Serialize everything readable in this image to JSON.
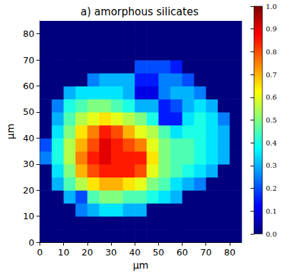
{
  "chart_data": {
    "type": "heatmap",
    "title": "a) amorphous silicates",
    "x_label": "µm",
    "y_label": "µm",
    "xlim": [
      0,
      85
    ],
    "ylim": [
      0,
      85
    ],
    "xticks": [
      0,
      10,
      20,
      30,
      40,
      50,
      60,
      70,
      80
    ],
    "yticks": [
      0,
      10,
      20,
      30,
      40,
      50,
      60,
      70,
      80
    ],
    "x": [
      2.5,
      7.5,
      12.5,
      17.5,
      22.5,
      27.5,
      32.5,
      37.5,
      42.5,
      47.5,
      52.5,
      57.5,
      62.5,
      67.5,
      72.5,
      77.5,
      82.5
    ],
    "y": [
      2.5,
      7.5,
      12.5,
      17.5,
      22.5,
      27.5,
      32.5,
      37.5,
      42.5,
      47.5,
      52.5,
      57.5,
      62.5,
      67.5,
      72.5,
      77.5,
      82.5
    ],
    "values": [
      [
        0,
        0,
        0,
        0,
        0,
        0,
        0,
        0,
        0,
        0,
        0,
        0,
        0,
        0,
        0,
        0,
        0
      ],
      [
        0,
        0,
        0,
        0,
        0,
        0,
        0,
        0,
        0,
        0,
        0,
        0,
        0,
        0,
        0,
        0,
        0
      ],
      [
        0,
        0,
        0,
        0.25,
        0.3,
        0.35,
        0.35,
        0.3,
        0.3,
        0,
        0,
        0,
        0,
        0,
        0,
        0,
        0
      ],
      [
        0,
        0,
        0.3,
        0.2,
        0.45,
        0.5,
        0.5,
        0.45,
        0.45,
        0.4,
        0.35,
        0.3,
        0,
        0,
        0,
        0,
        0
      ],
      [
        0,
        0.3,
        0.45,
        0.55,
        0.65,
        0.7,
        0.7,
        0.65,
        0.6,
        0.5,
        0.45,
        0.35,
        0.3,
        0.25,
        0,
        0,
        0
      ],
      [
        0,
        0.35,
        0.5,
        0.7,
        0.8,
        0.85,
        0.85,
        0.85,
        0.8,
        0.6,
        0.5,
        0.45,
        0.4,
        0.35,
        0.3,
        0,
        0
      ],
      [
        0.25,
        0.4,
        0.55,
        0.75,
        0.85,
        0.9,
        0.85,
        0.85,
        0.85,
        0.65,
        0.5,
        0.45,
        0.45,
        0.4,
        0.35,
        0.3,
        0
      ],
      [
        0.2,
        0.4,
        0.55,
        0.7,
        0.8,
        0.9,
        0.85,
        0.8,
        0.75,
        0.6,
        0.5,
        0.45,
        0.45,
        0.4,
        0.35,
        0.3,
        0
      ],
      [
        0,
        0.35,
        0.5,
        0.65,
        0.75,
        0.85,
        0.8,
        0.7,
        0.6,
        0.55,
        0.45,
        0.35,
        0.4,
        0.4,
        0.35,
        0.3,
        0
      ],
      [
        0,
        0.3,
        0.45,
        0.55,
        0.6,
        0.65,
        0.6,
        0.55,
        0.5,
        0.4,
        0.15,
        0.15,
        0.35,
        0.4,
        0.35,
        0.25,
        0
      ],
      [
        0,
        0.25,
        0.4,
        0.45,
        0.5,
        0.5,
        0.45,
        0.4,
        0.3,
        0.3,
        0.15,
        0.2,
        0.3,
        0.35,
        0.3,
        0,
        0
      ],
      [
        0,
        0,
        0.3,
        0.35,
        0.35,
        0.35,
        0.35,
        0.3,
        0.1,
        0.1,
        0.25,
        0.3,
        0.3,
        0.25,
        0,
        0,
        0
      ],
      [
        0,
        0,
        0,
        0,
        0.25,
        0.3,
        0.3,
        0.3,
        0.15,
        0.15,
        0.25,
        0.25,
        0.2,
        0,
        0,
        0,
        0
      ],
      [
        0,
        0,
        0,
        0,
        0,
        0,
        0,
        0,
        0.2,
        0.2,
        0.2,
        0.15,
        0,
        0,
        0,
        0,
        0
      ],
      [
        0,
        0,
        0,
        0,
        0,
        0,
        0,
        0,
        0,
        0,
        0,
        0,
        0,
        0,
        0,
        0,
        0
      ],
      [
        0,
        0,
        0,
        0,
        0,
        0,
        0,
        0,
        0,
        0,
        0,
        0,
        0,
        0,
        0,
        0,
        0
      ],
      [
        0,
        0,
        0,
        0,
        0,
        0,
        0,
        0,
        0,
        0,
        0,
        0,
        0,
        0,
        0,
        0,
        0
      ]
    ],
    "colorbar_range": [
      0,
      1
    ],
    "colorbar_ticks": [
      {
        "value": 0,
        "label": "0.0"
      },
      0.1,
      0.2,
      0.3,
      0.4,
      0.5,
      0.6,
      0.7,
      0.8,
      0.9,
      {
        "value": 1,
        "label": "1.0"
      }
    ]
  }
}
